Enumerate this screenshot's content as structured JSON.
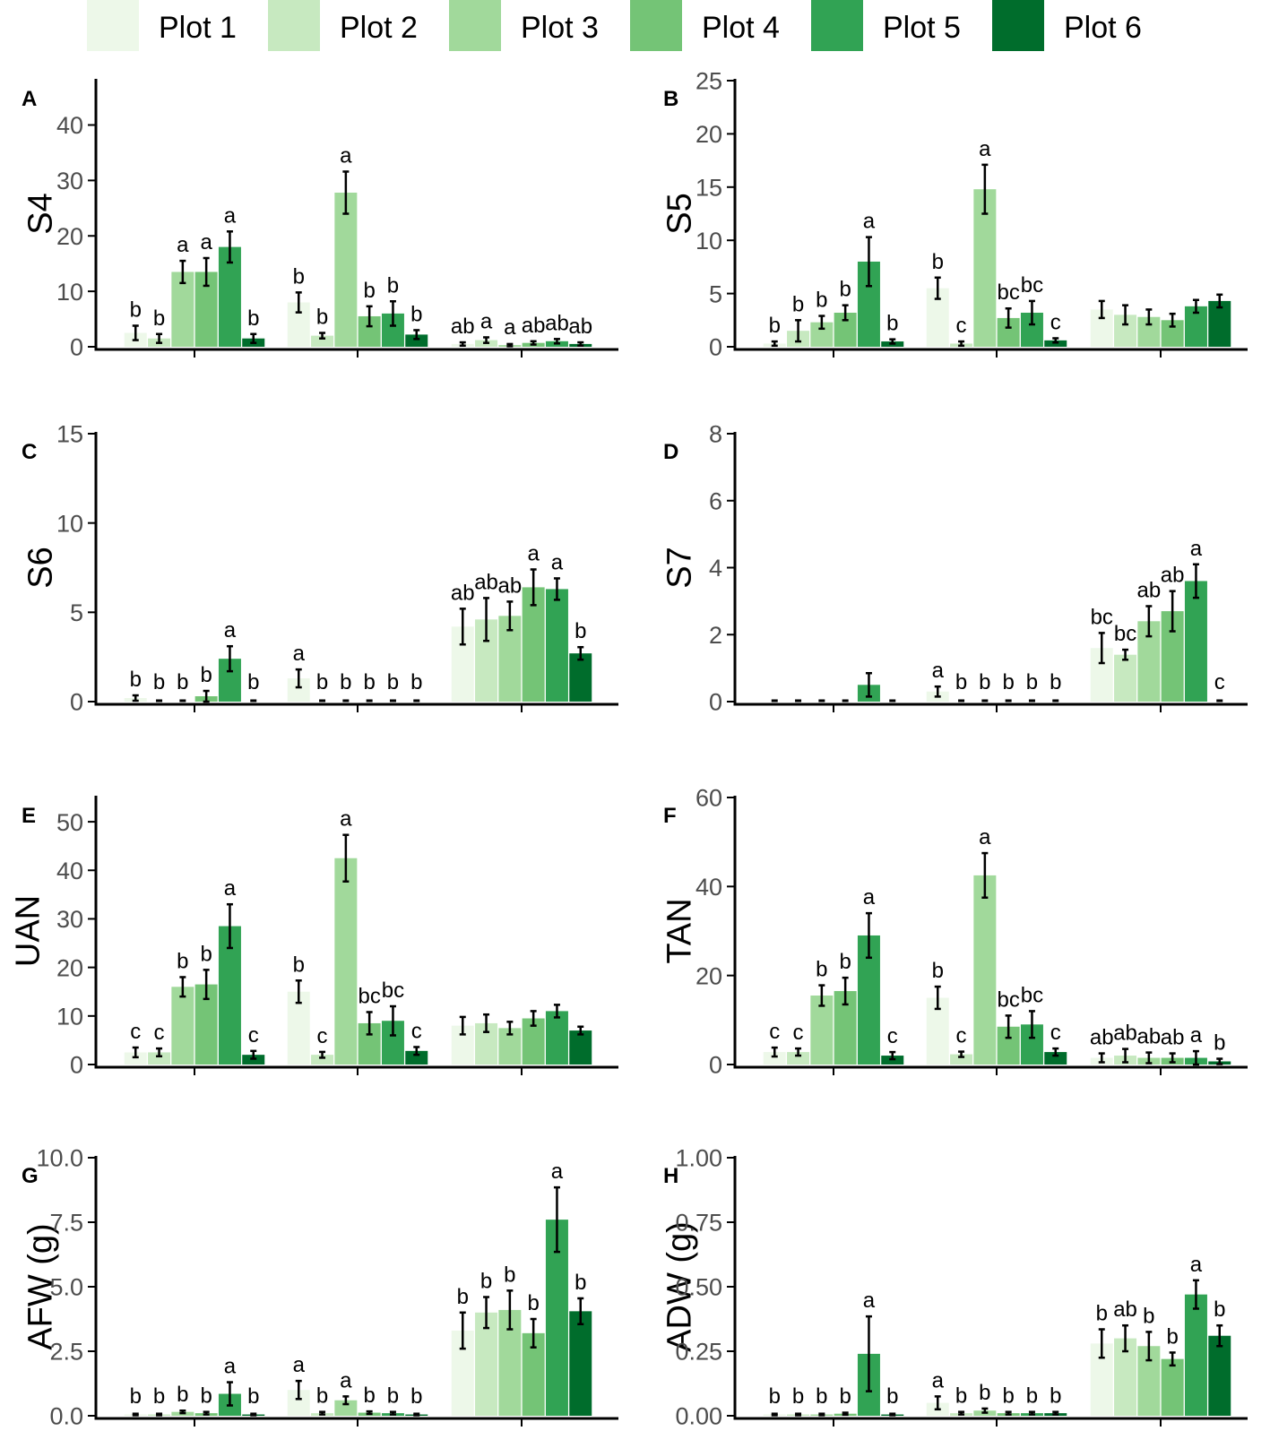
{
  "colors": {
    "series": [
      "#edf8e9",
      "#c7e9c0",
      "#a1d99b",
      "#74c476",
      "#31a354",
      "#006d2c"
    ],
    "axis": "#000000",
    "tick_label": "#4d4d4d"
  },
  "legend": {
    "entries": [
      "Plot 1",
      "Plot 2",
      "Plot 3",
      "Plot 4",
      "Plot 5",
      "Plot 6"
    ],
    "position": "top"
  },
  "chart_data": [
    {
      "type": "bar",
      "panel_label": "A",
      "ylabel": "S4",
      "ylim": [
        0,
        48
      ],
      "yticks": [
        0,
        10,
        20,
        30,
        40
      ],
      "tick_labels": [
        "0",
        "10",
        "20",
        "30",
        "40"
      ],
      "groups": 3,
      "series": [
        {
          "name": "Plot 1",
          "values": [
            2.5,
            8.0,
            0.5
          ],
          "errors": [
            1.3,
            1.8,
            0.3
          ],
          "letters": [
            "b",
            "b",
            "ab"
          ]
        },
        {
          "name": "Plot 2",
          "values": [
            1.5,
            2.0,
            1.2
          ],
          "errors": [
            0.8,
            0.5,
            0.5
          ],
          "letters": [
            "b",
            "b",
            "a"
          ]
        },
        {
          "name": "Plot 3",
          "values": [
            13.5,
            27.8,
            0.3
          ],
          "errors": [
            2.0,
            3.8,
            0.2
          ],
          "letters": [
            "a",
            "a",
            "a"
          ]
        },
        {
          "name": "Plot 4",
          "values": [
            13.5,
            5.5,
            0.7
          ],
          "errors": [
            2.5,
            1.8,
            0.3
          ],
          "letters": [
            "a",
            "b",
            "ab"
          ]
        },
        {
          "name": "Plot 5",
          "values": [
            18.0,
            6.0,
            1.0
          ],
          "errors": [
            2.8,
            2.2,
            0.4
          ],
          "letters": [
            "a",
            "b",
            "ab"
          ]
        },
        {
          "name": "Plot 6",
          "values": [
            1.5,
            2.2,
            0.5
          ],
          "errors": [
            0.8,
            0.8,
            0.3
          ],
          "letters": [
            "b",
            "b",
            "ab"
          ]
        }
      ]
    },
    {
      "type": "bar",
      "panel_label": "B",
      "ylabel": "S5",
      "ylim": [
        0,
        25
      ],
      "yticks": [
        0,
        5,
        10,
        15,
        20,
        25
      ],
      "tick_labels": [
        "0",
        "5",
        "10",
        "15",
        "20",
        "25"
      ],
      "groups": 3,
      "series": [
        {
          "name": "Plot 1",
          "values": [
            0.3,
            5.5,
            3.5
          ],
          "errors": [
            0.2,
            1.0,
            0.8
          ],
          "letters": [
            "b",
            "b",
            ""
          ]
        },
        {
          "name": "Plot 2",
          "values": [
            1.5,
            0.3,
            3.0
          ],
          "errors": [
            1.0,
            0.2,
            0.9
          ],
          "letters": [
            "b",
            "c",
            ""
          ]
        },
        {
          "name": "Plot 3",
          "values": [
            2.3,
            14.8,
            2.8
          ],
          "errors": [
            0.6,
            2.3,
            0.7
          ],
          "letters": [
            "b",
            "a",
            ""
          ]
        },
        {
          "name": "Plot 4",
          "values": [
            3.2,
            2.7,
            2.5
          ],
          "errors": [
            0.7,
            0.9,
            0.6
          ],
          "letters": [
            "b",
            "bc",
            ""
          ]
        },
        {
          "name": "Plot 5",
          "values": [
            8.0,
            3.2,
            3.8
          ],
          "errors": [
            2.3,
            1.1,
            0.6
          ],
          "letters": [
            "a",
            "bc",
            ""
          ]
        },
        {
          "name": "Plot 6",
          "values": [
            0.5,
            0.6,
            4.3
          ],
          "errors": [
            0.2,
            0.2,
            0.6
          ],
          "letters": [
            "b",
            "c",
            ""
          ]
        }
      ]
    },
    {
      "type": "bar",
      "panel_label": "C",
      "ylabel": "S6",
      "ylim": [
        0,
        15
      ],
      "yticks": [
        0,
        5,
        10,
        15
      ],
      "tick_labels": [
        "0",
        "5",
        "10",
        "15"
      ],
      "groups": 3,
      "series": [
        {
          "name": "Plot 1",
          "values": [
            0.2,
            1.3,
            4.2
          ],
          "errors": [
            0.15,
            0.5,
            1.0
          ],
          "letters": [
            "b",
            "a",
            "ab"
          ]
        },
        {
          "name": "Plot 2",
          "values": [
            0.0,
            0.0,
            4.6
          ],
          "errors": [
            0.0,
            0.0,
            1.2
          ],
          "letters": [
            "b",
            "b",
            "ab"
          ]
        },
        {
          "name": "Plot 3",
          "values": [
            0.0,
            0.0,
            4.8
          ],
          "errors": [
            0.0,
            0.0,
            0.8
          ],
          "letters": [
            "b",
            "b",
            "ab"
          ]
        },
        {
          "name": "Plot 4",
          "values": [
            0.3,
            0.0,
            6.4
          ],
          "errors": [
            0.3,
            0.0,
            1.0
          ],
          "letters": [
            "b",
            "b",
            "a"
          ]
        },
        {
          "name": "Plot 5",
          "values": [
            2.4,
            0.0,
            6.3
          ],
          "errors": [
            0.7,
            0.0,
            0.6
          ],
          "letters": [
            "a",
            "b",
            "a"
          ]
        },
        {
          "name": "Plot 6",
          "values": [
            0.0,
            0.0,
            2.7
          ],
          "errors": [
            0.0,
            0.0,
            0.35
          ],
          "letters": [
            "b",
            "b",
            "b"
          ]
        }
      ]
    },
    {
      "type": "bar",
      "panel_label": "D",
      "ylabel": "S7",
      "ylim": [
        0,
        8
      ],
      "yticks": [
        0,
        2,
        4,
        6,
        8
      ],
      "tick_labels": [
        "0",
        "2",
        "4",
        "6",
        "8"
      ],
      "groups": 3,
      "series": [
        {
          "name": "Plot 1",
          "values": [
            0.0,
            0.3,
            1.6
          ],
          "errors": [
            0.0,
            0.15,
            0.45
          ],
          "letters": [
            "",
            "a",
            "bc"
          ]
        },
        {
          "name": "Plot 2",
          "values": [
            0.0,
            0.0,
            1.4
          ],
          "errors": [
            0.0,
            0.0,
            0.15
          ],
          "letters": [
            "",
            "b",
            "bc"
          ]
        },
        {
          "name": "Plot 3",
          "values": [
            0.0,
            0.0,
            2.4
          ],
          "errors": [
            0.0,
            0.0,
            0.45
          ],
          "letters": [
            "",
            "b",
            "ab"
          ]
        },
        {
          "name": "Plot 4",
          "values": [
            0.0,
            0.0,
            2.7
          ],
          "errors": [
            0.0,
            0.0,
            0.6
          ],
          "letters": [
            "",
            "b",
            "ab"
          ]
        },
        {
          "name": "Plot 5",
          "values": [
            0.5,
            0.0,
            3.6
          ],
          "errors": [
            0.35,
            0.0,
            0.5
          ],
          "letters": [
            "",
            "b",
            "a"
          ]
        },
        {
          "name": "Plot 6",
          "values": [
            0.0,
            0.0,
            0.0
          ],
          "errors": [
            0.0,
            0.0,
            0.0
          ],
          "letters": [
            "",
            "b",
            "c"
          ]
        }
      ]
    },
    {
      "type": "bar",
      "panel_label": "E",
      "ylabel": "UAN",
      "ylim": [
        0,
        55
      ],
      "yticks": [
        0,
        10,
        20,
        30,
        40,
        50
      ],
      "tick_labels": [
        "0",
        "10",
        "20",
        "30",
        "40",
        "50"
      ],
      "groups": 3,
      "series": [
        {
          "name": "Plot 1",
          "values": [
            2.5,
            15.0,
            8.0
          ],
          "errors": [
            1.0,
            2.3,
            1.8
          ],
          "letters": [
            "c",
            "b",
            ""
          ]
        },
        {
          "name": "Plot 2",
          "values": [
            2.5,
            2.0,
            8.5
          ],
          "errors": [
            0.8,
            0.6,
            1.8
          ],
          "letters": [
            "c",
            "c",
            ""
          ]
        },
        {
          "name": "Plot 3",
          "values": [
            16.0,
            42.5,
            7.5
          ],
          "errors": [
            2.0,
            4.8,
            1.3
          ],
          "letters": [
            "b",
            "a",
            ""
          ]
        },
        {
          "name": "Plot 4",
          "values": [
            16.5,
            8.5,
            9.5
          ],
          "errors": [
            3.0,
            2.3,
            1.5
          ],
          "letters": [
            "b",
            "bc",
            ""
          ]
        },
        {
          "name": "Plot 5",
          "values": [
            28.5,
            9.0,
            11.0
          ],
          "errors": [
            4.5,
            3.0,
            1.3
          ],
          "letters": [
            "a",
            "bc",
            ""
          ]
        },
        {
          "name": "Plot 6",
          "values": [
            2.0,
            2.8,
            7.0
          ],
          "errors": [
            0.8,
            0.8,
            0.8
          ],
          "letters": [
            "c",
            "c",
            ""
          ]
        }
      ]
    },
    {
      "type": "bar",
      "panel_label": "F",
      "ylabel": "TAN",
      "ylim": [
        0,
        60
      ],
      "yticks": [
        0,
        20,
        40,
        60
      ],
      "tick_labels": [
        "0",
        "20",
        "40",
        "60"
      ],
      "groups": 3,
      "series": [
        {
          "name": "Plot 1",
          "values": [
            2.8,
            15.0,
            1.5
          ],
          "errors": [
            1.0,
            2.5,
            1.0
          ],
          "letters": [
            "c",
            "b",
            "ab"
          ]
        },
        {
          "name": "Plot 2",
          "values": [
            2.8,
            2.3,
            2.0
          ],
          "errors": [
            0.8,
            0.6,
            1.5
          ],
          "letters": [
            "c",
            "c",
            "ab"
          ]
        },
        {
          "name": "Plot 3",
          "values": [
            15.5,
            42.5,
            1.5
          ],
          "errors": [
            2.3,
            5.0,
            1.2
          ],
          "letters": [
            "b",
            "a",
            "ab"
          ]
        },
        {
          "name": "Plot 4",
          "values": [
            16.5,
            8.5,
            1.5
          ],
          "errors": [
            3.0,
            2.5,
            1.0
          ],
          "letters": [
            "b",
            "bc",
            "ab"
          ]
        },
        {
          "name": "Plot 5",
          "values": [
            29.0,
            9.0,
            1.5
          ],
          "errors": [
            5.0,
            3.0,
            1.5
          ],
          "letters": [
            "a",
            "bc",
            "a"
          ]
        },
        {
          "name": "Plot 6",
          "values": [
            2.0,
            2.8,
            0.7
          ],
          "errors": [
            0.8,
            0.8,
            0.6
          ],
          "letters": [
            "c",
            "c",
            "b"
          ]
        }
      ]
    },
    {
      "type": "bar",
      "panel_label": "G",
      "ylabel": "AFW (g)",
      "ylim": [
        0,
        10
      ],
      "yticks": [
        0,
        2.5,
        5,
        7.5,
        10
      ],
      "tick_labels": [
        "0.0",
        "2.5",
        "5.0",
        "7.5",
        "10.0"
      ],
      "groups": 3,
      "series": [
        {
          "name": "Plot 1",
          "values": [
            0.05,
            1.0,
            3.3
          ],
          "errors": [
            0.03,
            0.35,
            0.7
          ],
          "letters": [
            "b",
            "a",
            "b"
          ]
        },
        {
          "name": "Plot 2",
          "values": [
            0.05,
            0.1,
            4.0
          ],
          "errors": [
            0.03,
            0.05,
            0.6
          ],
          "letters": [
            "b",
            "b",
            "b"
          ]
        },
        {
          "name": "Plot 3",
          "values": [
            0.15,
            0.6,
            4.1
          ],
          "errors": [
            0.05,
            0.15,
            0.75
          ],
          "letters": [
            "b",
            "a",
            "b"
          ]
        },
        {
          "name": "Plot 4",
          "values": [
            0.1,
            0.12,
            3.2
          ],
          "errors": [
            0.05,
            0.05,
            0.55
          ],
          "letters": [
            "b",
            "b",
            "b"
          ]
        },
        {
          "name": "Plot 5",
          "values": [
            0.85,
            0.1,
            7.6
          ],
          "errors": [
            0.45,
            0.05,
            1.25
          ],
          "letters": [
            "a",
            "b",
            "a"
          ]
        },
        {
          "name": "Plot 6",
          "values": [
            0.05,
            0.05,
            4.05
          ],
          "errors": [
            0.03,
            0.03,
            0.5
          ],
          "letters": [
            "b",
            "b",
            "b"
          ]
        }
      ]
    },
    {
      "type": "bar",
      "panel_label": "H",
      "ylabel": "ADW (g)",
      "ylim": [
        0,
        1
      ],
      "yticks": [
        0,
        0.25,
        0.5,
        0.75,
        1
      ],
      "tick_labels": [
        "0.00",
        "0.25",
        "0.50",
        "0.75",
        "1.00"
      ],
      "groups": 3,
      "series": [
        {
          "name": "Plot 1",
          "values": [
            0.005,
            0.05,
            0.28
          ],
          "errors": [
            0.003,
            0.025,
            0.055
          ],
          "letters": [
            "b",
            "a",
            "b"
          ]
        },
        {
          "name": "Plot 2",
          "values": [
            0.005,
            0.01,
            0.3
          ],
          "errors": [
            0.003,
            0.005,
            0.05
          ],
          "letters": [
            "b",
            "b",
            "ab"
          ]
        },
        {
          "name": "Plot 3",
          "values": [
            0.005,
            0.02,
            0.27
          ],
          "errors": [
            0.003,
            0.008,
            0.055
          ],
          "letters": [
            "b",
            "b",
            "b"
          ]
        },
        {
          "name": "Plot 4",
          "values": [
            0.008,
            0.01,
            0.22
          ],
          "errors": [
            0.004,
            0.005,
            0.025
          ],
          "letters": [
            "b",
            "b",
            "b"
          ]
        },
        {
          "name": "Plot 5",
          "values": [
            0.24,
            0.01,
            0.47
          ],
          "errors": [
            0.145,
            0.005,
            0.055
          ],
          "letters": [
            "a",
            "b",
            "a"
          ]
        },
        {
          "name": "Plot 6",
          "values": [
            0.005,
            0.01,
            0.31
          ],
          "errors": [
            0.003,
            0.005,
            0.04
          ],
          "letters": [
            "b",
            "b",
            "b"
          ]
        }
      ]
    }
  ]
}
